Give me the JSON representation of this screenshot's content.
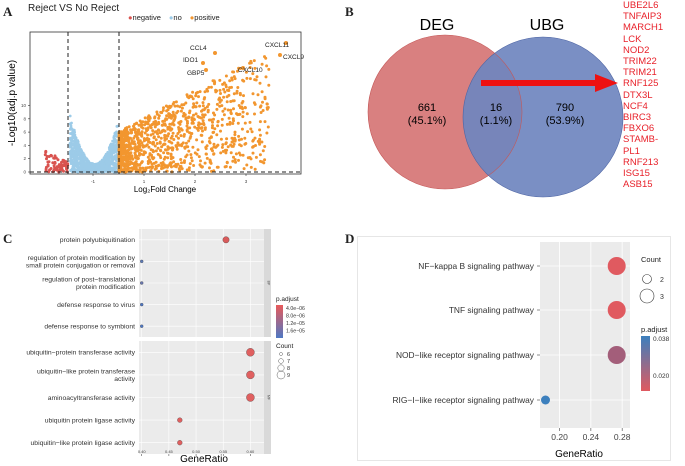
{
  "panels": {
    "A": {
      "letter": "A",
      "title": "Reject VS No Reject",
      "legend": [
        {
          "label": "negative",
          "color": "#d9534f"
        },
        {
          "label": "no",
          "color": "#9ccbe8"
        },
        {
          "label": "positive",
          "color": "#f2962f"
        }
      ],
      "xlabel": "Log₂Fold Change",
      "ylabel": "-Log10(adj.p value)",
      "x_ticks": [
        "-1",
        "1",
        "2",
        "3"
      ],
      "y_ticks": [
        "0",
        "2",
        "4",
        "6",
        "8",
        "10"
      ],
      "gene_labels": [
        "CCL4",
        "IDO1",
        "GBP5",
        "CXCL10",
        "CXCL11",
        "CXCL9"
      ]
    },
    "B": {
      "letter": "B",
      "sets": [
        {
          "name": "DEG",
          "count": "661",
          "percent": "(45.1%)",
          "color": "#d98080"
        },
        {
          "name": "UBG",
          "count": "790",
          "percent": "(53.9%)",
          "color": "#6f86bf"
        }
      ],
      "overlap": {
        "count": "16",
        "percent": "(1.1%)"
      },
      "overlap_genes": [
        "UBE2L6",
        "TNFAIP3",
        "MARCH1",
        "LCK",
        "NOD2",
        "TRIM22",
        "TRIM21",
        "RNF125",
        "DTX3L",
        "NCF4",
        "BIRC3",
        "FBXO6",
        "STAMB-",
        "PL1",
        "RNF213",
        "ISG15",
        "ASB15"
      ]
    },
    "C": {
      "letter": "C",
      "chart_data": {
        "type": "scatter",
        "xlabel": "GeneRatio",
        "x_ticks": [
          "0.40",
          "0.45",
          "0.50",
          "0.55",
          "0.60"
        ],
        "xlim": [
          0.395,
          0.625
        ],
        "facets": [
          {
            "strip": "BP",
            "terms": [
              {
                "label": "protein polyubiquitination",
                "x": 0.555,
                "count": 8,
                "color": "#d95b5b"
              },
              {
                "label": "regulation of protein modification by small protein conjugation or removal",
                "x": 0.4,
                "count": 6,
                "color": "#5f7cb8"
              },
              {
                "label": "regulation of post−translational protein modification",
                "x": 0.4,
                "count": 6,
                "color": "#6a78b0"
              },
              {
                "label": "defense response to virus",
                "x": 0.4,
                "count": 6,
                "color": "#4f78c4"
              },
              {
                "label": "defense response to symbiont",
                "x": 0.4,
                "count": 6,
                "color": "#4f78c4"
              }
            ]
          },
          {
            "strip": "MF",
            "terms": [
              {
                "label": "ubiquitin−protein transferase activity",
                "x": 0.6,
                "count": 9,
                "color": "#e06060"
              },
              {
                "label": "ubiquitin−like protein transferase activity",
                "x": 0.6,
                "count": 9,
                "color": "#e06060"
              },
              {
                "label": "aminoacyltransferase activity",
                "x": 0.6,
                "count": 9,
                "color": "#e06060"
              },
              {
                "label": "ubiquitin protein ligase activity",
                "x": 0.47,
                "count": 7,
                "color": "#e06060"
              },
              {
                "label": "ubiquitin−like protein ligase activity",
                "x": 0.47,
                "count": 7,
                "color": "#e06060"
              }
            ]
          }
        ],
        "color_legend_title": "p.adjust",
        "color_legend_ticks": [
          "4.0e−06",
          "8.0e−06",
          "1.2e−05",
          "1.6e−05"
        ],
        "size_legend_title": "Count",
        "size_legend_values": [
          "6",
          "7",
          "8",
          "9"
        ]
      }
    },
    "D": {
      "letter": "D",
      "chart_data": {
        "type": "scatter",
        "xlabel": "GeneRatio",
        "x_ticks": [
          "0.20",
          "0.24",
          "0.28"
        ],
        "xlim": [
          0.175,
          0.29
        ],
        "terms": [
          {
            "label": "NF−kappa B signaling pathway",
            "x": 0.273,
            "count": 3,
            "color": "#e05a60"
          },
          {
            "label": "TNF signaling pathway",
            "x": 0.273,
            "count": 3,
            "color": "#e05a60"
          },
          {
            "label": "NOD−like receptor signaling pathway",
            "x": 0.273,
            "count": 3,
            "color": "#a35e7a"
          },
          {
            "label": "RIG−I−like receptor signaling pathway",
            "x": 0.182,
            "count": 2,
            "color": "#3c7fbd"
          }
        ],
        "size_legend_title": "Count",
        "size_legend_values": [
          "2",
          "3"
        ],
        "color_legend_title": "p.adjust",
        "color_legend_ticks": [
          "0.038",
          "0.020"
        ]
      }
    }
  }
}
